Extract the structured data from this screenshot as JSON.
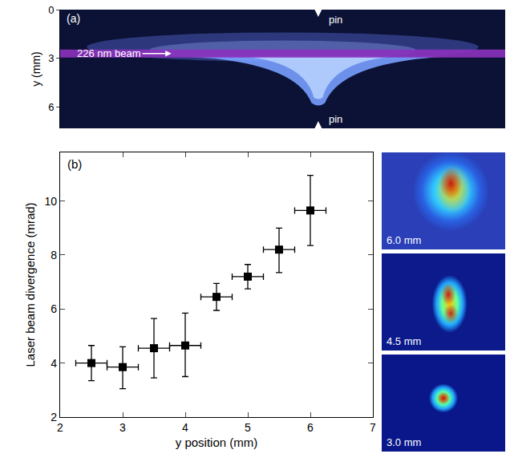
{
  "chart_data": [
    {
      "panel": "(a)",
      "type": "image",
      "ylabel": "y (mm)",
      "ylim": [
        0,
        7.3
      ],
      "yticks": [
        0,
        3,
        6
      ],
      "labels": {
        "top_pin": "pin",
        "bottom_pin": "pin",
        "beam": "226 nm beam"
      }
    },
    {
      "panel": "(b)",
      "type": "scatter",
      "xlabel": "y position (mm)",
      "ylabel": "Laser beam divergence (mrad)",
      "x": [
        2.5,
        3.0,
        3.5,
        4.0,
        4.5,
        5.0,
        5.5,
        6.0
      ],
      "values": [
        4.0,
        3.85,
        4.55,
        4.65,
        6.45,
        7.2,
        8.2,
        9.65
      ],
      "x_error": [
        0.25,
        0.25,
        0.25,
        0.25,
        0.25,
        0.25,
        0.25,
        0.25
      ],
      "y_error_plus": [
        0.65,
        0.75,
        1.1,
        1.2,
        0.5,
        0.45,
        0.8,
        1.3
      ],
      "y_error_minus": [
        0.65,
        0.8,
        1.1,
        1.15,
        0.5,
        0.45,
        0.85,
        1.3
      ],
      "xlim": [
        2,
        7
      ],
      "xticks": [
        2,
        3,
        4,
        5,
        6,
        7
      ],
      "ylim": [
        2,
        11.8
      ],
      "yticks": [
        2,
        4,
        6,
        8,
        10
      ],
      "color": "#000000",
      "marker": "square",
      "grid": false
    }
  ],
  "beam_profiles": [
    {
      "label": "6.0 mm"
    },
    {
      "label": "4.5 mm"
    },
    {
      "label": "3.0 mm"
    }
  ]
}
